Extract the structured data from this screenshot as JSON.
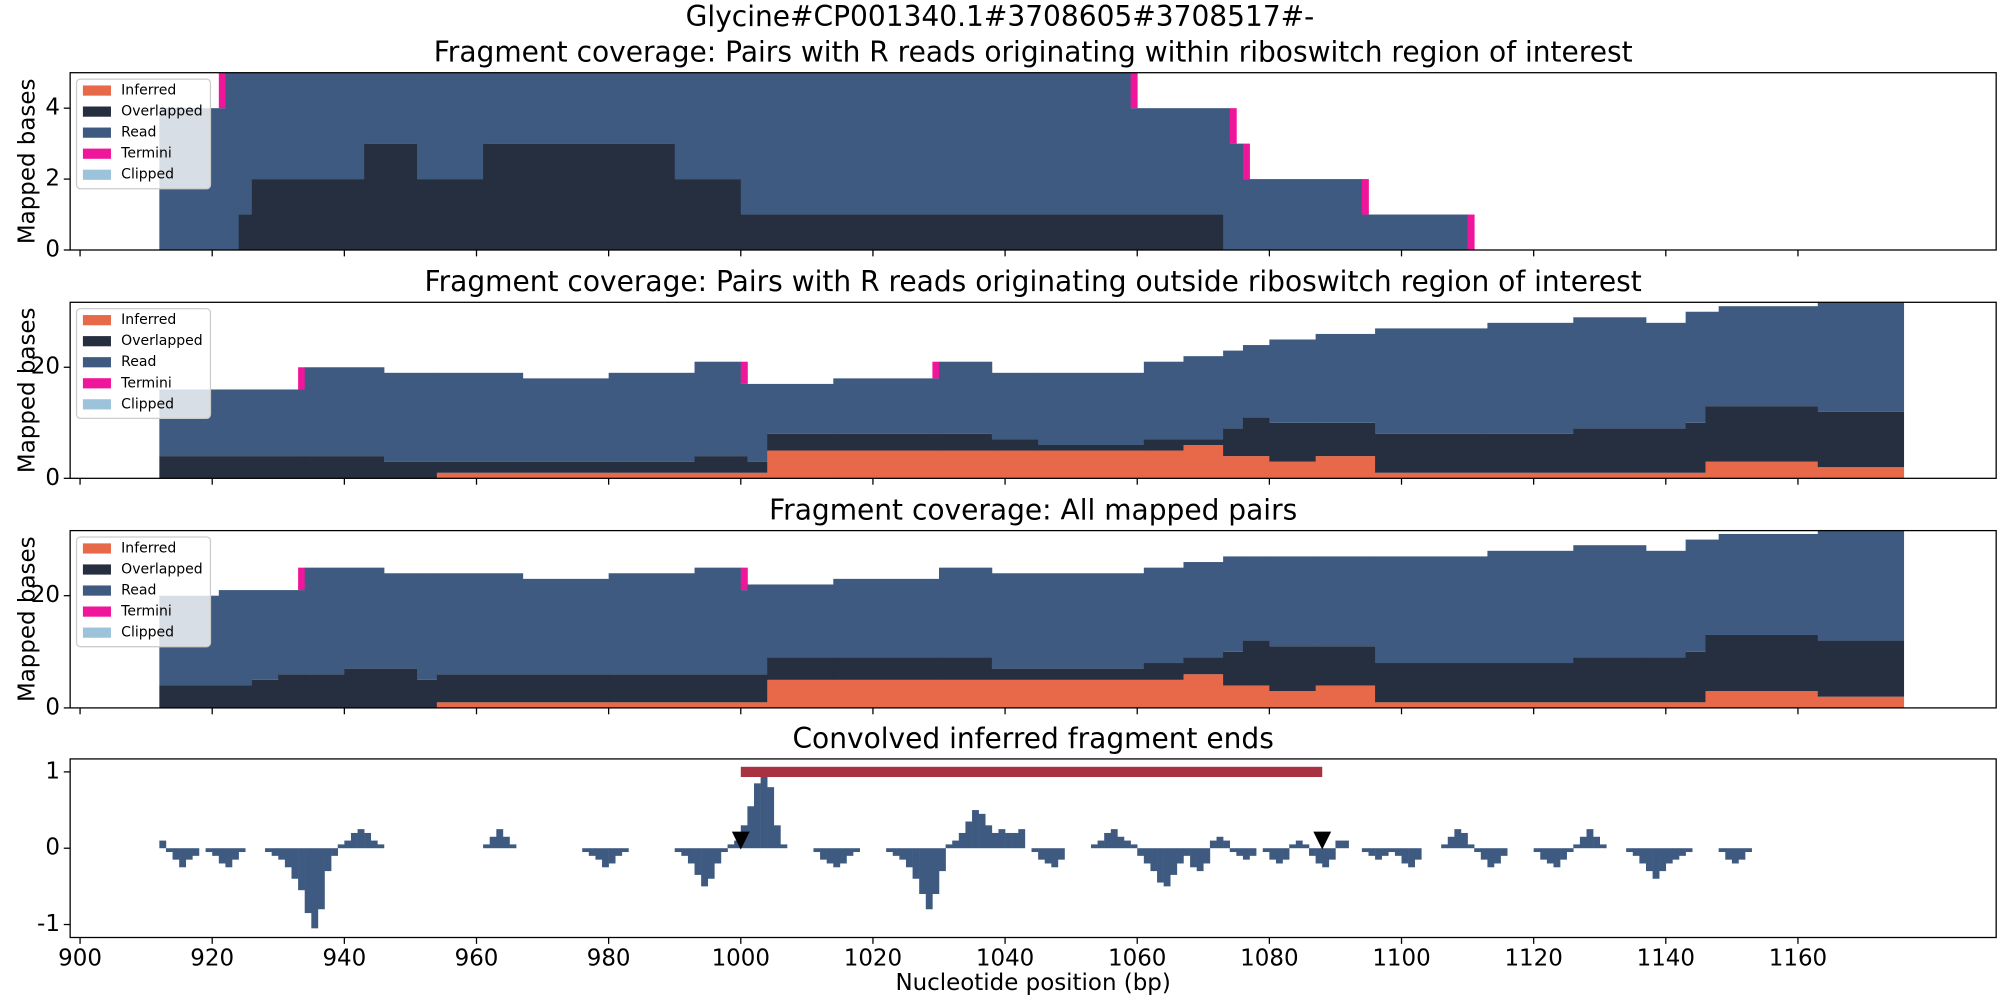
{
  "title": "Glycine#CP001340.1#3708605#3708517#-",
  "sharex": true,
  "chart_data": [
    {
      "type": "histogram",
      "stacked": true,
      "title": "Fragment coverage: Pairs with R reads originating within riboswitch region of interest",
      "ylabel": "Mapped bases",
      "ylim": [
        0,
        5
      ],
      "yticks": [
        0,
        2,
        4
      ],
      "legend": "upper left",
      "bins": [
        912,
        921,
        922,
        924,
        926,
        943,
        951,
        961,
        990,
        1000,
        1059,
        1060,
        1073,
        1074,
        1075,
        1076,
        1077,
        1094,
        1095,
        1110,
        1111
      ],
      "series": [
        {
          "name": "Inferred",
          "color": "#e8694a",
          "values": [
            0,
            0,
            0,
            0,
            0,
            0,
            0,
            0,
            0,
            0,
            0,
            0,
            0,
            0,
            0,
            0,
            0,
            0,
            0,
            0
          ]
        },
        {
          "name": "Overlapped",
          "color": "#262f3f",
          "values": [
            0,
            0,
            0,
            1,
            2,
            3,
            2,
            3,
            2,
            1,
            1,
            1,
            0,
            0,
            0,
            0,
            0,
            0,
            0,
            0
          ]
        },
        {
          "name": "Read",
          "color": "#3e5a80",
          "values": [
            4,
            4,
            5,
            4,
            3,
            2,
            3,
            2,
            3,
            4,
            3,
            3,
            4,
            3,
            3,
            2,
            2,
            1,
            1,
            0
          ]
        },
        {
          "name": "Termini",
          "color": "#f0169b",
          "values": [
            0,
            1,
            0,
            0,
            0,
            0,
            0,
            0,
            0,
            0,
            1,
            0,
            0,
            1,
            0,
            1,
            0,
            1,
            0,
            1
          ]
        },
        {
          "name": "Clipped",
          "color": "#9dc3db",
          "values": [
            0,
            0,
            0,
            0,
            0,
            0,
            0,
            0,
            0,
            0,
            0,
            0,
            0,
            0,
            0,
            0,
            0,
            0,
            0,
            0
          ]
        }
      ]
    },
    {
      "type": "histogram",
      "stacked": true,
      "title": "Fragment coverage: Pairs with R reads originating outside riboswitch region of interest",
      "ylabel": "Mapped bases",
      "ylim": [
        0,
        31.7
      ],
      "yticks": [
        0,
        20
      ],
      "legend": "upper left",
      "bins": [
        912,
        933,
        934,
        946,
        954,
        967,
        980,
        993,
        1000,
        1001,
        1004,
        1014,
        1029,
        1030,
        1038,
        1045,
        1061,
        1067,
        1073,
        1076,
        1080,
        1087,
        1096,
        1113,
        1126,
        1137,
        1143,
        1146,
        1148,
        1163,
        1176
      ],
      "series": [
        {
          "name": "Inferred",
          "color": "#e8694a",
          "values": [
            0,
            0,
            0,
            0,
            1,
            1,
            1,
            1,
            1,
            1,
            5,
            5,
            5,
            5,
            5,
            5,
            5,
            6,
            4,
            4,
            3,
            4,
            1,
            1,
            1,
            1,
            1,
            3,
            3,
            2
          ]
        },
        {
          "name": "Overlapped",
          "color": "#262f3f",
          "values": [
            4,
            4,
            4,
            3,
            2,
            2,
            2,
            3,
            3,
            2,
            3,
            3,
            3,
            3,
            2,
            1,
            2,
            1,
            5,
            7,
            7,
            6,
            7,
            7,
            8,
            8,
            9,
            10,
            10,
            10
          ]
        },
        {
          "name": "Read",
          "color": "#3e5a80",
          "values": [
            12,
            12,
            16,
            16,
            16,
            15,
            16,
            17,
            13,
            14,
            9,
            10,
            10,
            13,
            12,
            13,
            14,
            15,
            14,
            13,
            15,
            16,
            19,
            20,
            20,
            19,
            20,
            17,
            18,
            20
          ]
        },
        {
          "name": "Termini",
          "color": "#f0169b",
          "values": [
            0,
            4,
            0,
            0,
            0,
            0,
            0,
            0,
            4,
            0,
            0,
            0,
            3,
            0,
            0,
            0,
            0,
            0,
            0,
            0,
            0,
            0,
            0,
            0,
            0,
            0,
            0,
            0,
            0,
            0
          ]
        },
        {
          "name": "Clipped",
          "color": "#9dc3db",
          "values": [
            0,
            0,
            0,
            0,
            0,
            0,
            0,
            0,
            0,
            0,
            0,
            0,
            0,
            0,
            0,
            0,
            0,
            0,
            0,
            0,
            0,
            0,
            0,
            0,
            0,
            0,
            0,
            0,
            0,
            0
          ]
        }
      ]
    },
    {
      "type": "histogram",
      "stacked": true,
      "title": "Fragment coverage: All mapped pairs",
      "ylabel": "Mapped bases",
      "ylim": [
        0,
        31.6
      ],
      "yticks": [
        0,
        20
      ],
      "legend": "upper left",
      "bins": [
        912,
        921,
        926,
        930,
        933,
        934,
        940,
        946,
        951,
        954,
        967,
        980,
        993,
        1000,
        1001,
        1004,
        1014,
        1030,
        1038,
        1061,
        1067,
        1073,
        1076,
        1080,
        1087,
        1096,
        1113,
        1126,
        1137,
        1143,
        1146,
        1148,
        1163,
        1176
      ],
      "series": [
        {
          "name": "Inferred",
          "color": "#e8694a",
          "values": [
            0,
            0,
            0,
            0,
            0,
            0,
            0,
            0,
            0,
            1,
            1,
            1,
            1,
            1,
            1,
            5,
            5,
            5,
            5,
            5,
            6,
            4,
            4,
            3,
            4,
            1,
            1,
            1,
            1,
            1,
            3,
            3,
            2
          ]
        },
        {
          "name": "Overlapped",
          "color": "#262f3f",
          "values": [
            4,
            4,
            5,
            6,
            6,
            6,
            7,
            7,
            5,
            5,
            5,
            5,
            5,
            5,
            5,
            4,
            4,
            4,
            2,
            3,
            3,
            6,
            8,
            8,
            7,
            7,
            7,
            8,
            8,
            9,
            10,
            10,
            10
          ]
        },
        {
          "name": "Read",
          "color": "#3e5a80",
          "values": [
            16,
            17,
            16,
            15,
            15,
            19,
            18,
            17,
            19,
            18,
            17,
            18,
            19,
            15,
            16,
            13,
            14,
            16,
            17,
            17,
            17,
            17,
            15,
            16,
            16,
            19,
            20,
            20,
            19,
            20,
            17,
            18,
            20
          ]
        },
        {
          "name": "Termini",
          "color": "#f0169b",
          "values": [
            0,
            0,
            0,
            0,
            4,
            0,
            0,
            0,
            0,
            0,
            0,
            0,
            0,
            4,
            0,
            0,
            0,
            0,
            0,
            0,
            0,
            0,
            0,
            0,
            0,
            0,
            0,
            0,
            0,
            0,
            0,
            0,
            0
          ]
        },
        {
          "name": "Clipped",
          "color": "#9dc3db",
          "values": [
            0,
            0,
            0,
            0,
            0,
            0,
            0,
            0,
            0,
            0,
            0,
            0,
            0,
            0,
            0,
            0,
            0,
            0,
            0,
            0,
            0,
            0,
            0,
            0,
            0,
            0,
            0,
            0,
            0,
            0,
            0,
            0,
            0
          ]
        }
      ]
    },
    {
      "type": "bar",
      "title": "Convolved inferred fragment ends",
      "xlabel": "Nucleotide position (bp)",
      "color": "#3e5a80",
      "xlim": [
        898.5,
        1190
      ],
      "xticks": [
        900,
        920,
        940,
        960,
        980,
        1000,
        1020,
        1040,
        1060,
        1080,
        1100,
        1120,
        1140,
        1160
      ],
      "ylim": [
        -1.17,
        1.17
      ],
      "yticks": [
        -1,
        0,
        1
      ],
      "x": [
        912,
        913,
        914,
        915,
        916,
        917,
        919,
        920,
        921,
        922,
        923,
        924,
        928,
        929,
        930,
        931,
        932,
        933,
        934,
        935,
        936,
        937,
        938,
        939,
        940,
        941,
        942,
        943,
        944,
        945,
        961,
        962,
        963,
        964,
        965,
        976,
        977,
        978,
        979,
        980,
        981,
        982,
        990,
        991,
        992,
        993,
        994,
        995,
        996,
        997,
        998,
        999,
        1000,
        1001,
        1002,
        1003,
        1004,
        1005,
        1006,
        1011,
        1012,
        1013,
        1014,
        1015,
        1016,
        1017,
        1022,
        1023,
        1024,
        1025,
        1026,
        1027,
        1028,
        1029,
        1030,
        1031,
        1032,
        1033,
        1034,
        1035,
        1036,
        1037,
        1038,
        1039,
        1040,
        1041,
        1042,
        1044,
        1045,
        1046,
        1047,
        1048,
        1053,
        1054,
        1055,
        1056,
        1057,
        1058,
        1059,
        1060,
        1061,
        1062,
        1063,
        1064,
        1065,
        1066,
        1067,
        1068,
        1069,
        1070,
        1071,
        1072,
        1073,
        1074,
        1075,
        1076,
        1077,
        1079,
        1080,
        1081,
        1082,
        1083,
        1084,
        1085,
        1086,
        1087,
        1088,
        1089,
        1090,
        1091,
        1094,
        1095,
        1096,
        1097,
        1098,
        1099,
        1100,
        1101,
        1102,
        1106,
        1107,
        1108,
        1109,
        1110,
        1111,
        1112,
        1113,
        1114,
        1115,
        1120,
        1121,
        1122,
        1123,
        1124,
        1125,
        1126,
        1127,
        1128,
        1129,
        1130,
        1134,
        1135,
        1136,
        1137,
        1138,
        1139,
        1140,
        1141,
        1142,
        1143,
        1148,
        1149,
        1150,
        1151,
        1152
      ],
      "values": [
        0.1,
        -0.05,
        -0.15,
        -0.25,
        -0.15,
        -0.1,
        -0.05,
        -0.1,
        -0.2,
        -0.25,
        -0.15,
        -0.05,
        -0.05,
        -0.1,
        -0.15,
        -0.25,
        -0.4,
        -0.55,
        -0.85,
        -1.05,
        -0.8,
        -0.3,
        -0.1,
        0.05,
        0.1,
        0.2,
        0.25,
        0.2,
        0.1,
        0.05,
        0.05,
        0.15,
        0.25,
        0.15,
        0.05,
        -0.05,
        -0.1,
        -0.15,
        -0.25,
        -0.2,
        -0.1,
        -0.05,
        -0.05,
        -0.1,
        -0.2,
        -0.35,
        -0.5,
        -0.4,
        -0.2,
        -0.05,
        0.05,
        0.1,
        0.3,
        0.55,
        0.85,
        1.05,
        0.8,
        0.3,
        0.05,
        -0.05,
        -0.15,
        -0.2,
        -0.25,
        -0.2,
        -0.1,
        -0.05,
        -0.05,
        -0.1,
        -0.15,
        -0.25,
        -0.4,
        -0.6,
        -0.8,
        -0.6,
        -0.3,
        0.05,
        0.1,
        0.2,
        0.35,
        0.5,
        0.45,
        0.3,
        0.2,
        0.25,
        0.2,
        0.2,
        0.25,
        -0.05,
        -0.15,
        -0.2,
        -0.25,
        -0.15,
        0.05,
        0.1,
        0.2,
        0.25,
        0.15,
        0.1,
        0.05,
        -0.1,
        -0.2,
        -0.3,
        -0.45,
        -0.5,
        -0.35,
        -0.2,
        -0.1,
        -0.25,
        -0.3,
        -0.2,
        0.1,
        0.15,
        0.1,
        -0.05,
        -0.1,
        -0.15,
        -0.1,
        -0.05,
        -0.15,
        -0.2,
        -0.15,
        0.05,
        0.1,
        0.05,
        -0.1,
        -0.2,
        -0.25,
        -0.15,
        0.1,
        0.1,
        -0.05,
        -0.1,
        -0.15,
        -0.1,
        -0.05,
        -0.1,
        -0.2,
        -0.25,
        -0.15,
        0.05,
        0.15,
        0.25,
        0.2,
        0.05,
        -0.05,
        -0.15,
        -0.25,
        -0.2,
        -0.1,
        -0.05,
        -0.15,
        -0.2,
        -0.25,
        -0.15,
        -0.05,
        0.05,
        0.15,
        0.25,
        0.15,
        0.05,
        -0.05,
        -0.1,
        -0.2,
        -0.3,
        -0.4,
        -0.3,
        -0.2,
        -0.15,
        -0.1,
        -0.05,
        -0.05,
        -0.15,
        -0.2,
        -0.15,
        -0.05
      ],
      "region": {
        "start": 1000,
        "end": 1088,
        "y": 1.0,
        "color": "#a83242"
      },
      "markers": {
        "x": [
          1000,
          1088
        ],
        "y": [
          0.1,
          0.1
        ],
        "color": "#000000"
      }
    }
  ]
}
